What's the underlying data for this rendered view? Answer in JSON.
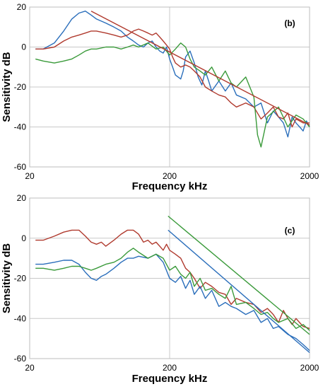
{
  "chart_data": [
    {
      "type": "line",
      "panel_label": "(b)",
      "xlabel": "Frequency  kHz",
      "ylabel": "Sensitivity  dB",
      "xscale": "log",
      "xlim": [
        20,
        2000
      ],
      "ylim": [
        -60,
        20
      ],
      "x_ticks": [
        20,
        200,
        2000
      ],
      "x_tick_labels": [
        "20",
        "200",
        "2000"
      ],
      "y_ticks": [
        -60,
        -40,
        -20,
        0,
        20
      ],
      "y_tick_labels": [
        "-60",
        "-40",
        "-20",
        "0",
        "20"
      ],
      "grid": true,
      "series": [
        {
          "color": "#2a6ebb",
          "x": [
            22,
            25,
            30,
            35,
            40,
            45,
            50,
            55,
            60,
            70,
            80,
            90,
            100,
            110,
            120,
            130,
            140,
            150,
            160,
            170,
            180,
            190,
            200,
            210,
            220,
            240,
            250,
            260,
            280,
            300,
            320,
            340,
            360,
            380,
            400,
            450,
            500,
            550,
            600,
            700,
            800,
            900,
            1000,
            1100,
            1200,
            1300,
            1400,
            1500,
            1600,
            1700,
            1800,
            1900,
            2000
          ],
          "y": [
            -1,
            -1,
            2,
            8,
            14,
            17,
            18,
            16,
            14,
            12,
            10,
            8,
            5,
            3,
            1,
            0,
            2,
            3,
            0,
            -2,
            -3,
            0,
            -6,
            -10,
            -14,
            -16,
            -12,
            -5,
            -2,
            -8,
            -15,
            -19,
            -12,
            -17,
            -22,
            -17,
            -22,
            -18,
            -24,
            -26,
            -30,
            -28,
            -38,
            -32,
            -35,
            -38,
            -45,
            -35,
            -38,
            -40,
            -42,
            -37,
            -40
          ]
        },
        {
          "color": "#b03a2e",
          "x": [
            22,
            25,
            30,
            35,
            40,
            45,
            50,
            55,
            60,
            70,
            80,
            90,
            100,
            110,
            120,
            130,
            140,
            150,
            160,
            170,
            180,
            190,
            200,
            210,
            220,
            240,
            260,
            280,
            300,
            330,
            360,
            400,
            450,
            500,
            550,
            600,
            700,
            800,
            900,
            1000,
            1100,
            1200,
            1300,
            1400,
            1500,
            1600,
            1800,
            2000
          ],
          "y": [
            -1,
            -1,
            0,
            3,
            5,
            6,
            7,
            8,
            8,
            7,
            6,
            5,
            6,
            8,
            9,
            8,
            7,
            6,
            7,
            5,
            3,
            1,
            -1,
            -5,
            -8,
            -10,
            -9,
            -10,
            -12,
            -15,
            -20,
            -22,
            -24,
            -25,
            -28,
            -30,
            -28,
            -30,
            -36,
            -33,
            -30,
            -35,
            -36,
            -33,
            -40,
            -36,
            -38,
            -38
          ]
        },
        {
          "color": "#3a9a3a",
          "x": [
            22,
            25,
            30,
            35,
            40,
            45,
            50,
            55,
            60,
            70,
            80,
            90,
            100,
            110,
            120,
            140,
            160,
            180,
            200,
            220,
            240,
            260,
            280,
            300,
            330,
            360,
            400,
            450,
            500,
            550,
            600,
            700,
            800,
            850,
            900,
            1000,
            1200,
            1400,
            1600,
            1800,
            2000
          ],
          "y": [
            -6,
            -7,
            -8,
            -7,
            -6,
            -4,
            -2,
            -1,
            -1,
            0,
            0,
            -1,
            0,
            1,
            0,
            2,
            -1,
            0,
            -4,
            -1,
            2,
            0,
            -6,
            -10,
            -12,
            -14,
            -10,
            -17,
            -12,
            -18,
            -20,
            -15,
            -25,
            -44,
            -50,
            -35,
            -30,
            -40,
            -34,
            -36,
            -40
          ]
        },
        {
          "color": "#b03a2e",
          "x": [
            55,
            2000
          ],
          "y": [
            18,
            -39
          ]
        }
      ]
    },
    {
      "type": "line",
      "panel_label": "(c)",
      "xlabel": "Frequency  kHz",
      "ylabel": "Sensitivity  dB",
      "xscale": "log",
      "xlim": [
        20,
        2000
      ],
      "ylim": [
        -60,
        20
      ],
      "x_ticks": [
        20,
        200,
        2000
      ],
      "x_tick_labels": [
        "20",
        "200",
        "2000"
      ],
      "y_ticks": [
        -60,
        -40,
        -20,
        0,
        20
      ],
      "y_tick_labels": [
        "-60",
        "-40",
        "-20",
        "0",
        "20"
      ],
      "grid": true,
      "series": [
        {
          "color": "#b03a2e",
          "x": [
            22,
            25,
            30,
            35,
            40,
            45,
            50,
            55,
            60,
            65,
            70,
            80,
            90,
            100,
            110,
            120,
            130,
            140,
            150,
            160,
            170,
            180,
            190,
            200,
            220,
            240,
            260,
            280,
            300,
            330,
            360,
            400,
            450,
            500,
            550,
            600,
            700,
            800,
            900,
            1000,
            1100,
            1200,
            1300,
            1400,
            1500,
            1600,
            1800,
            2000
          ],
          "y": [
            -1,
            -1,
            1,
            3,
            4,
            4,
            1,
            -2,
            -3,
            -2,
            -4,
            -1,
            2,
            4,
            4,
            2,
            -2,
            -1,
            -3,
            -2,
            -4,
            -6,
            -3,
            -6,
            -8,
            -10,
            -15,
            -17,
            -20,
            -25,
            -22,
            -24,
            -27,
            -28,
            -33,
            -30,
            -32,
            -33,
            -37,
            -35,
            -38,
            -42,
            -36,
            -40,
            -43,
            -40,
            -44,
            -45
          ]
        },
        {
          "color": "#2a6ebb",
          "x": [
            22,
            25,
            30,
            35,
            40,
            45,
            50,
            55,
            60,
            65,
            70,
            80,
            90,
            100,
            110,
            120,
            140,
            160,
            180,
            200,
            220,
            240,
            260,
            280,
            300,
            330,
            360,
            400,
            450,
            500,
            550,
            600,
            700,
            800,
            900,
            1000,
            1100,
            1200,
            1400,
            1600,
            1800,
            2000
          ],
          "y": [
            -13,
            -13,
            -12,
            -11,
            -11,
            -13,
            -17,
            -20,
            -21,
            -19,
            -18,
            -15,
            -12,
            -10,
            -10,
            -9,
            -10,
            -8,
            -12,
            -20,
            -22,
            -19,
            -25,
            -21,
            -28,
            -24,
            -30,
            -26,
            -34,
            -32,
            -34,
            -35,
            -38,
            -36,
            -42,
            -40,
            -45,
            -44,
            -48,
            -50,
            -53,
            -56
          ]
        },
        {
          "color": "#3a9a3a",
          "x": [
            22,
            25,
            30,
            35,
            40,
            45,
            50,
            55,
            60,
            70,
            80,
            90,
            100,
            110,
            120,
            140,
            160,
            180,
            200,
            220,
            240,
            260,
            280,
            300,
            330,
            360,
            400,
            450,
            500,
            550,
            600,
            700,
            800,
            900,
            1000,
            1100,
            1200,
            1400,
            1600,
            1800,
            2000
          ],
          "y": [
            -15,
            -15,
            -16,
            -15,
            -14,
            -14,
            -15,
            -16,
            -15,
            -13,
            -12,
            -10,
            -7,
            -5,
            -7,
            -10,
            -8,
            -10,
            -16,
            -14,
            -18,
            -20,
            -17,
            -24,
            -20,
            -26,
            -25,
            -28,
            -30,
            -24,
            -33,
            -32,
            -35,
            -38,
            -37,
            -40,
            -42,
            -40,
            -45,
            -43,
            -46
          ]
        },
        {
          "color": "#3a9a3a",
          "x": [
            195,
            2000
          ],
          "y": [
            11,
            -48
          ]
        },
        {
          "color": "#2a6ebb",
          "x": [
            195,
            2000
          ],
          "y": [
            4,
            -57
          ]
        }
      ]
    }
  ]
}
